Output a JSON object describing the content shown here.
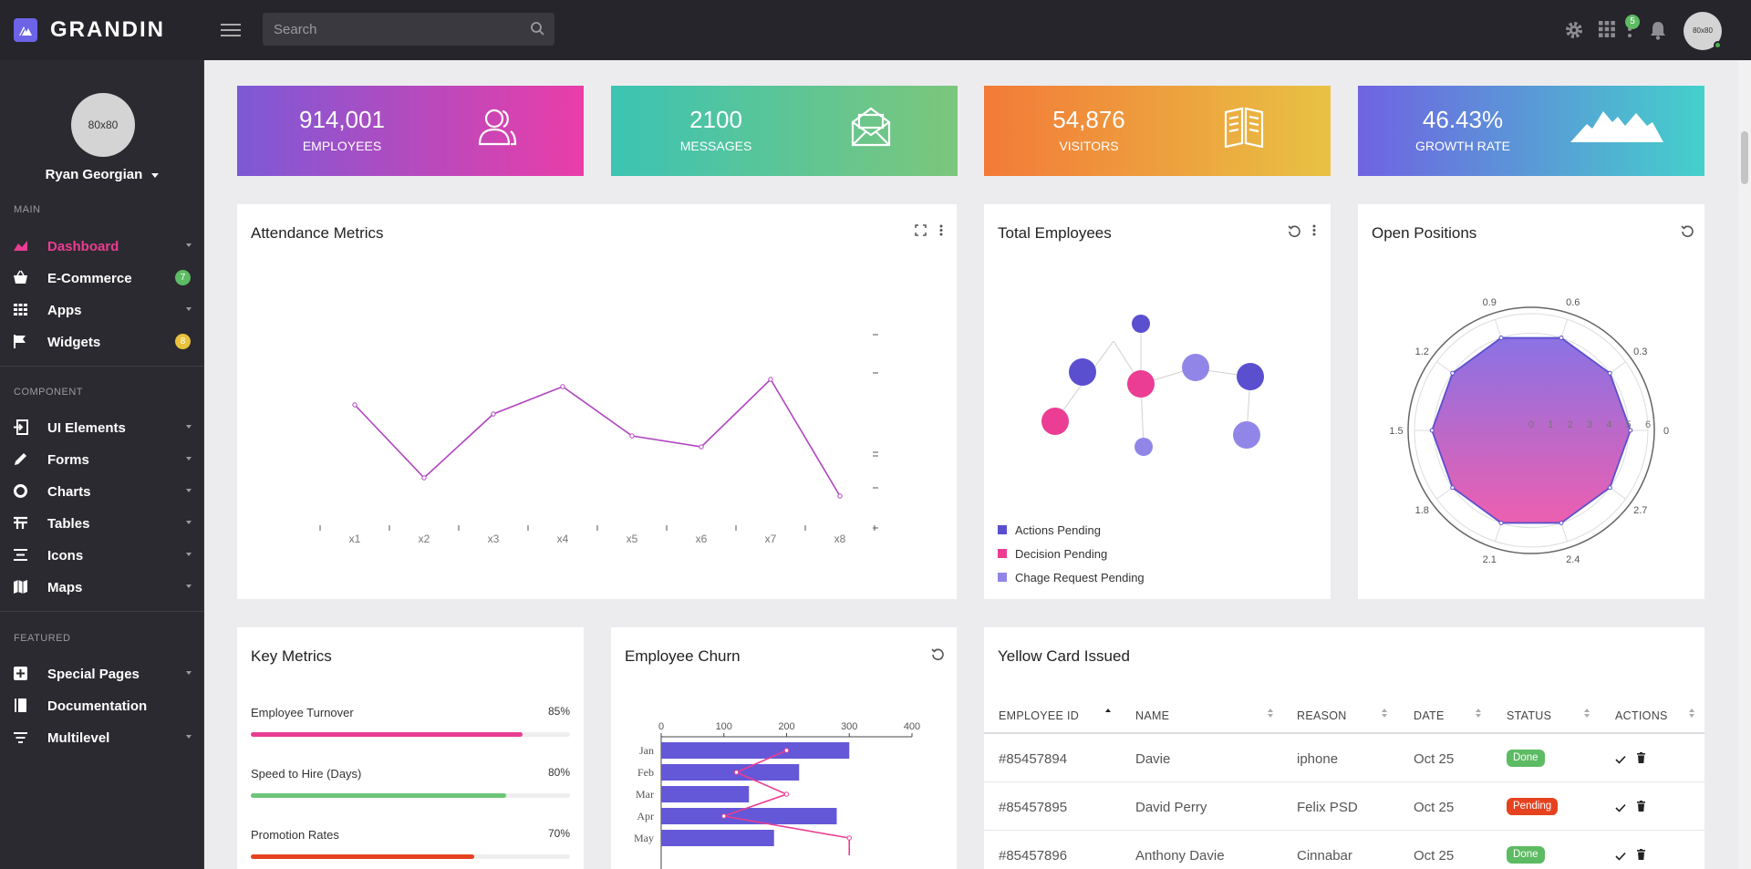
{
  "brand": {
    "name": "GRANDIN"
  },
  "search": {
    "placeholder": "Search"
  },
  "header": {
    "notification_count": "5",
    "avatar_text": "80x80"
  },
  "profile": {
    "avatar_text": "80x80",
    "name": "Ryan Georgian"
  },
  "sidebar": {
    "sections": [
      "MAIN",
      "COMPONENT",
      "FEATURED"
    ],
    "main": [
      {
        "label": "Dashboard",
        "icon": "chart-area-icon",
        "active": true
      },
      {
        "label": "E-Commerce",
        "icon": "basket-icon",
        "badge": "7"
      },
      {
        "label": "Apps",
        "icon": "grid-icon"
      },
      {
        "label": "Widgets",
        "icon": "flag-icon",
        "badge": "8"
      }
    ],
    "component": [
      {
        "label": "UI Elements",
        "icon": "login-icon"
      },
      {
        "label": "Forms",
        "icon": "pencil-icon"
      },
      {
        "label": "Charts",
        "icon": "donut-icon"
      },
      {
        "label": "Tables",
        "icon": "table-icon"
      },
      {
        "label": "Icons",
        "icon": "list-icon"
      },
      {
        "label": "Maps",
        "icon": "map-icon"
      }
    ],
    "featured": [
      {
        "label": "Special Pages",
        "icon": "plus-box-icon"
      },
      {
        "label": "Documentation",
        "icon": "book-icon"
      },
      {
        "label": "Multilevel",
        "icon": "filter-icon"
      }
    ]
  },
  "stats": [
    {
      "value": "914,001",
      "label": "EMPLOYEES",
      "icon": "users-icon"
    },
    {
      "value": "2100",
      "label": "MESSAGES",
      "icon": "envelope-icon"
    },
    {
      "value": "54,876",
      "label": "VISITORS",
      "icon": "book-open-icon"
    },
    {
      "value": "46.43%",
      "label": "GROWTH RATE",
      "icon": "mountains-icon"
    }
  ],
  "cards": {
    "attendance": "Attendance Metrics",
    "total_employees": "Total Employees",
    "open_positions": "Open Positions",
    "key_metrics": "Key Metrics",
    "churn": "Employee Churn",
    "yellow_card": "Yellow Card Issued"
  },
  "key_metrics": [
    {
      "label": "Employee Turnover",
      "pct": "85%",
      "value": 0.85,
      "color": "#ea3d93"
    },
    {
      "label": "Speed to Hire (Days)",
      "pct": "80%",
      "value": 0.8,
      "color": "#6cc478"
    },
    {
      "label": "Promotion Rates",
      "pct": "70%",
      "value": 0.7,
      "color": "#e6421f"
    }
  ],
  "legend": [
    {
      "label": "Actions Pending",
      "color": "#5a4fcf"
    },
    {
      "label": "Decision Pending",
      "color": "#ea3d93"
    },
    {
      "label": "Chage Request Pending",
      "color": "#9186e8"
    }
  ],
  "table": {
    "columns": [
      "EMPLOYEE ID",
      "NAME",
      "REASON",
      "DATE",
      "STATUS",
      "ACTIONS"
    ],
    "rows": [
      {
        "id": "#85457894",
        "name": "Davie",
        "reason": "iphone",
        "date": "Oct 25",
        "status": "Done",
        "status_color": "#5dbb63"
      },
      {
        "id": "#85457895",
        "name": "David Perry",
        "reason": "Felix PSD",
        "date": "Oct 25",
        "status": "Pending",
        "status_color": "#e6421f"
      },
      {
        "id": "#85457896",
        "name": "Anthony Davie",
        "reason": "Cinnabar",
        "date": "Oct 25",
        "status": "Done",
        "status_color": "#5dbb63"
      }
    ]
  },
  "chart_data": [
    {
      "type": "line",
      "title": "Attendance Metrics",
      "categories": [
        "x1",
        "x2",
        "x3",
        "x4",
        "x5",
        "x6",
        "x7",
        "x8"
      ],
      "series": [
        {
          "values": [
            60,
            20,
            55,
            70,
            43,
            37,
            74,
            10
          ]
        }
      ],
      "ylim": [
        0,
        100
      ]
    },
    {
      "type": "radar",
      "title": "Open Positions",
      "axes": [
        "0",
        "0.3",
        "0.6",
        "0.9",
        "1.2",
        "1.5",
        "1.8",
        "2.1",
        "2.4",
        "2.7"
      ],
      "radial_ticks": [
        "0",
        "1",
        "2",
        "3",
        "4",
        "5",
        "6"
      ],
      "series": [
        {
          "values": [
            5.1,
            5.0,
            5.0,
            5.0,
            5.0,
            5.1,
            5.0,
            5.0,
            5.0,
            5.0
          ]
        }
      ]
    },
    {
      "type": "bar",
      "title": "Employee Churn",
      "categories": [
        "Jan",
        "Feb",
        "Mar",
        "Apr",
        "May"
      ],
      "x_ticks": [
        "0",
        "100",
        "200",
        "300",
        "400"
      ],
      "xlim": [
        0,
        400
      ],
      "series": [
        {
          "values": [
            300,
            220,
            140,
            280,
            180
          ]
        },
        {
          "values": [
            200,
            120,
            200,
            100,
            300
          ]
        }
      ]
    }
  ]
}
